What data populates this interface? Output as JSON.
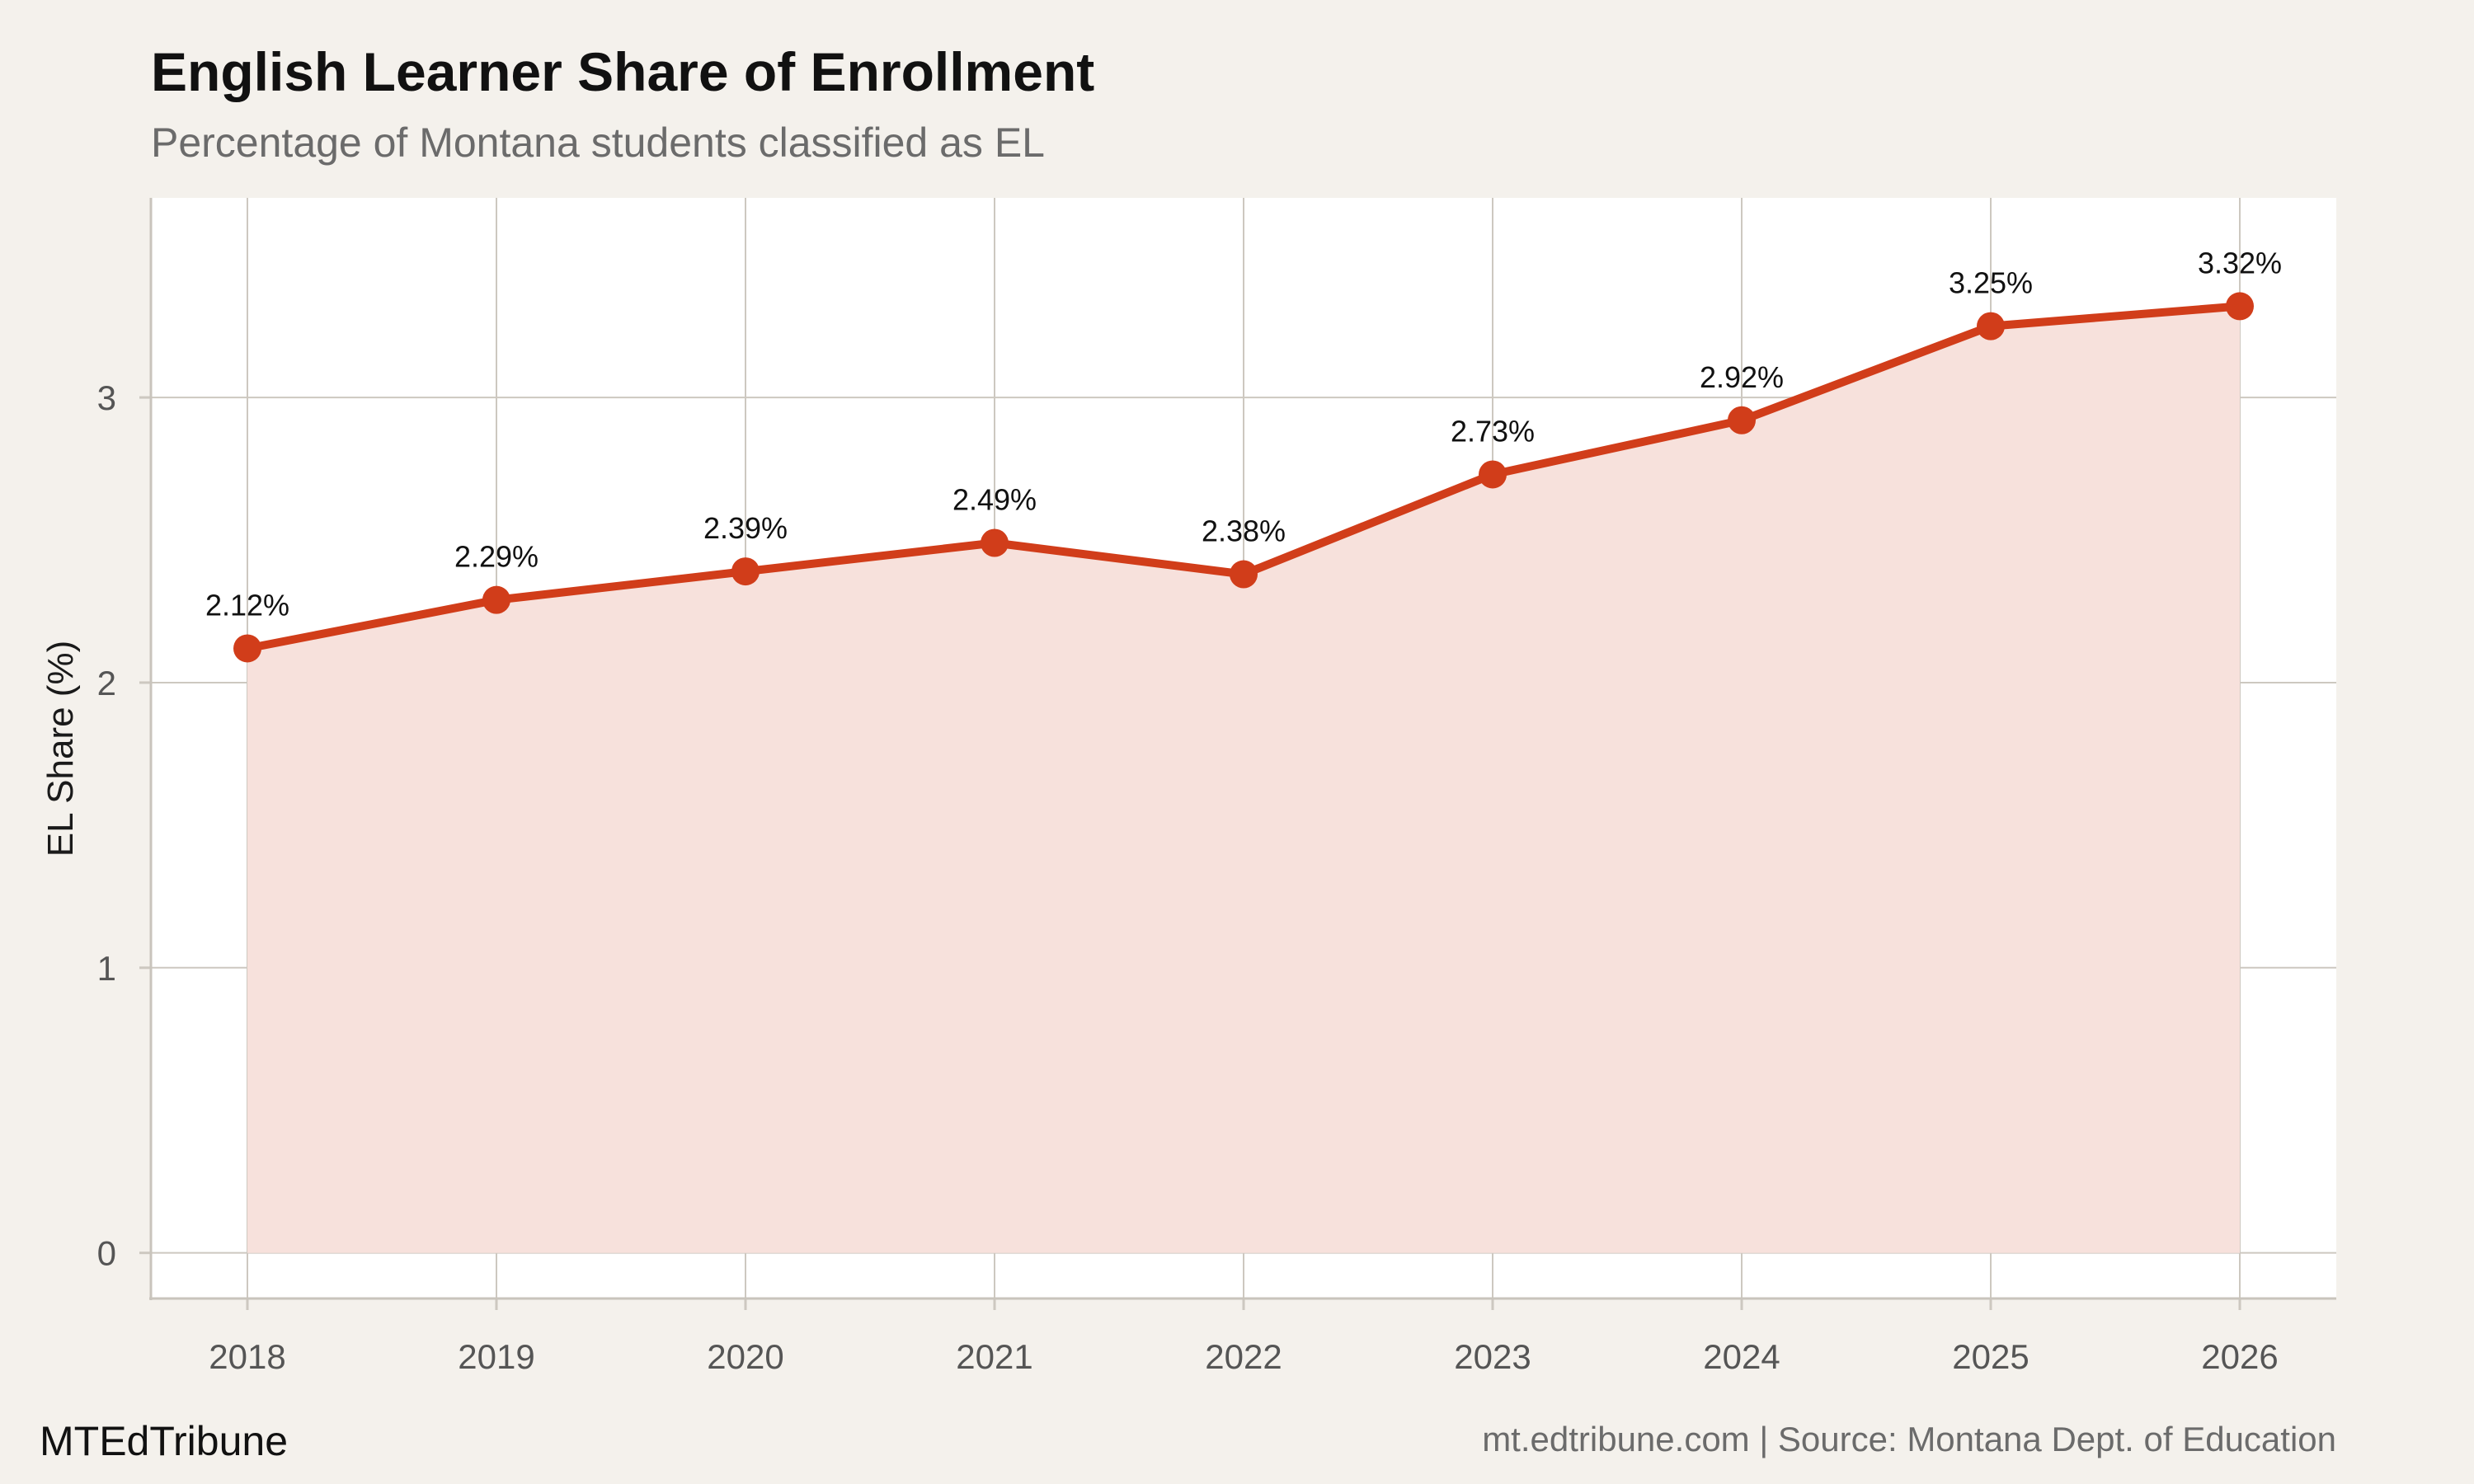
{
  "title": "English Learner Share of Enrollment",
  "subtitle": "Percentage of Montana students classified as EL",
  "brand": "MTEdTribune",
  "source": "mt.edtribune.com | Source: Montana Dept. of Education",
  "colors": {
    "background": "#f4f1ec",
    "panel": "#ffffff",
    "line": "#d13d1a",
    "area": "#f7e1dc",
    "grid": "#cdc8c0"
  },
  "chart_data": {
    "type": "line",
    "x": [
      "2018",
      "2019",
      "2020",
      "2021",
      "2022",
      "2023",
      "2024",
      "2025",
      "2026"
    ],
    "values": [
      2.12,
      2.29,
      2.39,
      2.49,
      2.38,
      2.73,
      2.92,
      3.25,
      3.32
    ],
    "data_labels": [
      "2.12%",
      "2.29%",
      "2.39%",
      "2.49%",
      "2.38%",
      "2.73%",
      "2.92%",
      "3.25%",
      "3.32%"
    ],
    "ylabel": "EL Share (%)",
    "xlabel": "",
    "ylim": [
      -0.16,
      3.7
    ],
    "yticks": [
      0,
      1,
      2,
      3
    ],
    "grid": true,
    "area_fill": true,
    "legend": "none"
  }
}
